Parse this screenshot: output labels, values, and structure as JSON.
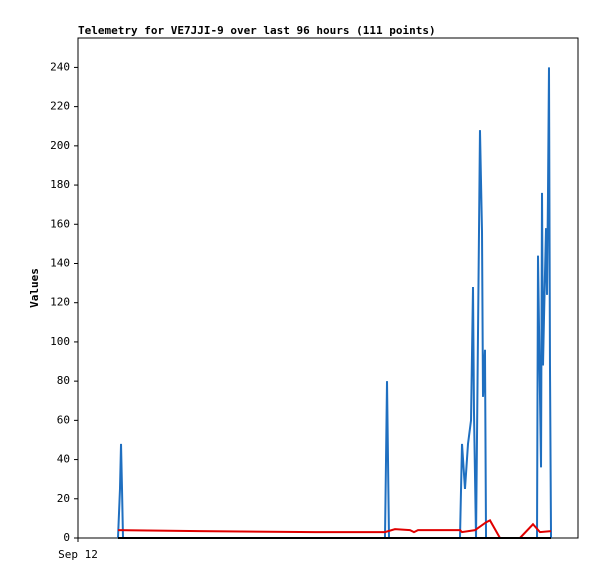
{
  "chart_data": {
    "type": "line",
    "title": "Telemetry for VE7JJI-9 over last 96 hours (111 points)",
    "ylabel": "Values",
    "xlim": [
      0,
      96
    ],
    "xticks": [
      {
        "value": 0,
        "label": "Sep 12"
      }
    ],
    "ylim": [
      0,
      255
    ],
    "yticks": [
      0,
      20,
      40,
      60,
      80,
      100,
      120,
      140,
      160,
      180,
      200,
      220,
      240
    ],
    "grid": false,
    "series": [
      {
        "color": "#1f6fc0",
        "x": [
          7.68,
          8.06,
          8.26,
          8.45,
          8.64,
          58.94,
          59.14,
          59.33,
          59.52,
          59.71,
          73.34,
          73.73,
          74.3,
          74.88,
          75.46,
          75.84,
          76.03,
          76.42,
          77.18,
          77.57,
          77.76,
          78.14,
          78.34,
          88.13,
          88.32,
          88.51,
          88.9,
          89.09,
          89.28,
          89.47,
          89.86,
          90.05,
          90.24,
          90.43,
          90.62,
          90.82
        ],
        "values": [
          0,
          25,
          48,
          25,
          0,
          0,
          40,
          80,
          40,
          0,
          0,
          48,
          25,
          48,
          60,
          128,
          64,
          0,
          208,
          156,
          72,
          96,
          0,
          0,
          144,
          108,
          36,
          176,
          88,
          112,
          158,
          124,
          176,
          240,
          88,
          0
        ]
      },
      {
        "color": "#e00000",
        "x": [
          7.68,
          23.42,
          45.5,
          58.94,
          60.86,
          63.74,
          64.51,
          65.28,
          73.34,
          73.73,
          76.22,
          78.34,
          79.1,
          81.02,
          84.86,
          87.36,
          88.7,
          90.82
        ],
        "values": [
          4,
          3.5,
          3,
          3,
          4.5,
          4,
          3,
          4,
          4,
          3,
          4,
          8,
          9,
          0,
          0,
          7,
          3,
          3.5
        ]
      },
      {
        "color": "#000000",
        "x": [
          7.68,
          90.82
        ],
        "values": [
          0,
          0
        ]
      }
    ]
  }
}
